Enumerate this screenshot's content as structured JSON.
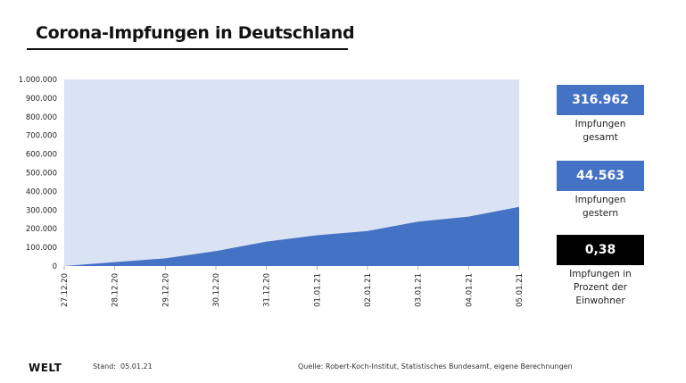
{
  "title": "Corona-Impfungen in Deutschland",
  "chart_data": {
    "type": "area",
    "title": "Corona-Impfungen in Deutschland",
    "x": [
      "27.12.20",
      "28.12.20",
      "29.12.20",
      "30.12.20",
      "31.12.20",
      "01.01.21",
      "02.01.21",
      "03.01.21",
      "04.01.21",
      "05.01.21"
    ],
    "series": [
      {
        "name": "Impfungen gesamt",
        "values": [
          0,
          21000,
          41000,
          80000,
          131000,
          165000,
          188000,
          238000,
          265000,
          316962
        ]
      }
    ],
    "ylim": [
      0,
      1000000
    ],
    "yticks": [
      "0",
      "100.000",
      "200.000",
      "300.000",
      "400.000",
      "500.000",
      "600.000",
      "700.000",
      "800.000",
      "900.000",
      "1.000.000"
    ],
    "xlabel": "",
    "ylabel": "",
    "colors": {
      "area": "#4472c4",
      "plot_background": "#dae3f3"
    }
  },
  "stats": [
    {
      "value": "316.962",
      "label": "Impfungen gesamt",
      "label_lines": [
        "Impfungen",
        "gesamt"
      ],
      "color": "#4472c4"
    },
    {
      "value": "44.563",
      "label": "Impfungen gestern",
      "label_lines": [
        "Impfungen",
        "gestern"
      ],
      "color": "#4472c4"
    },
    {
      "value": "0,38",
      "label": "Impfungen in Prozent der Einwohner",
      "label_lines": [
        "Impfungen in",
        "Prozent der",
        "Einwohner"
      ],
      "color": "#000000"
    }
  ],
  "footer": {
    "brand": "WELT",
    "stand": "Stand:  05.01.21",
    "source": "Quelle: Robert-Koch-Institut, Statistisches Bundesamt, eigene Berechnungen"
  }
}
